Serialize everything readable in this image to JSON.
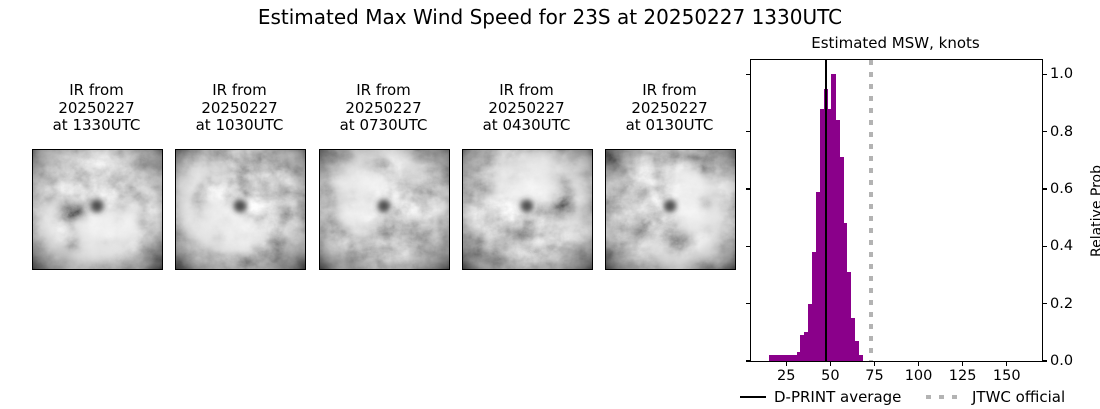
{
  "figure_title": "Estimated Max Wind Speed for 23S at 20250227 1330UTC",
  "satellite_panels": [
    {
      "caption_lines": [
        "IR from",
        "20250227",
        "at 1330UTC"
      ]
    },
    {
      "caption_lines": [
        "IR from",
        "20250227",
        "at 1030UTC"
      ]
    },
    {
      "caption_lines": [
        "IR from",
        "20250227",
        "at 0730UTC"
      ]
    },
    {
      "caption_lines": [
        "IR from",
        "20250227",
        "at 0430UTC"
      ]
    },
    {
      "caption_lines": [
        "IR from",
        "20250227",
        "at 0130UTC"
      ]
    }
  ],
  "chart_data": {
    "type": "bar",
    "subtype": "histogram",
    "title": "Estimated MSW, knots",
    "xlabel": "",
    "ylabel_right": "Relative Prob",
    "xlim": [
      5,
      170
    ],
    "ylim": [
      0,
      1.05
    ],
    "grid": false,
    "legend_position": "bottom",
    "x_ticks": [
      {
        "value": 25,
        "label": "25"
      },
      {
        "value": 50,
        "label": "50"
      },
      {
        "value": 75,
        "label": "75"
      },
      {
        "value": 100,
        "label": "100"
      },
      {
        "value": 125,
        "label": "125"
      },
      {
        "value": 150,
        "label": "150"
      }
    ],
    "y_ticks": [
      {
        "value": 0.0,
        "label": "0.0"
      },
      {
        "value": 0.2,
        "label": "0.2"
      },
      {
        "value": 0.4,
        "label": "0.4"
      },
      {
        "value": 0.6,
        "label": "0.6"
      },
      {
        "value": 0.8,
        "label": "0.8"
      },
      {
        "value": 1.0,
        "label": "1.0"
      }
    ],
    "histogram": {
      "bin_start": 15.4,
      "bin_width": 2.2,
      "heights": [
        0.02,
        0.02,
        0.02,
        0.02,
        0.02,
        0.02,
        0.02,
        0.03,
        0.09,
        0.1,
        0.2,
        0.38,
        0.59,
        0.88,
        0.95,
        0.88,
        1.0,
        0.84,
        0.71,
        0.48,
        0.31,
        0.15,
        0.07,
        0.02
      ],
      "color": "#8a008a"
    },
    "vlines": [
      {
        "name": "D-PRINT average",
        "x": 47.5,
        "style": "solid",
        "color": "#000000"
      },
      {
        "name": "JTWC official",
        "x": 73,
        "style": "dotted",
        "color": "#b3b3b3"
      }
    ],
    "legend": [
      {
        "label": "D-PRINT average",
        "swatch": "solid-black-line"
      },
      {
        "label": "JTWC official",
        "swatch": "dotted-gray-line"
      }
    ]
  }
}
